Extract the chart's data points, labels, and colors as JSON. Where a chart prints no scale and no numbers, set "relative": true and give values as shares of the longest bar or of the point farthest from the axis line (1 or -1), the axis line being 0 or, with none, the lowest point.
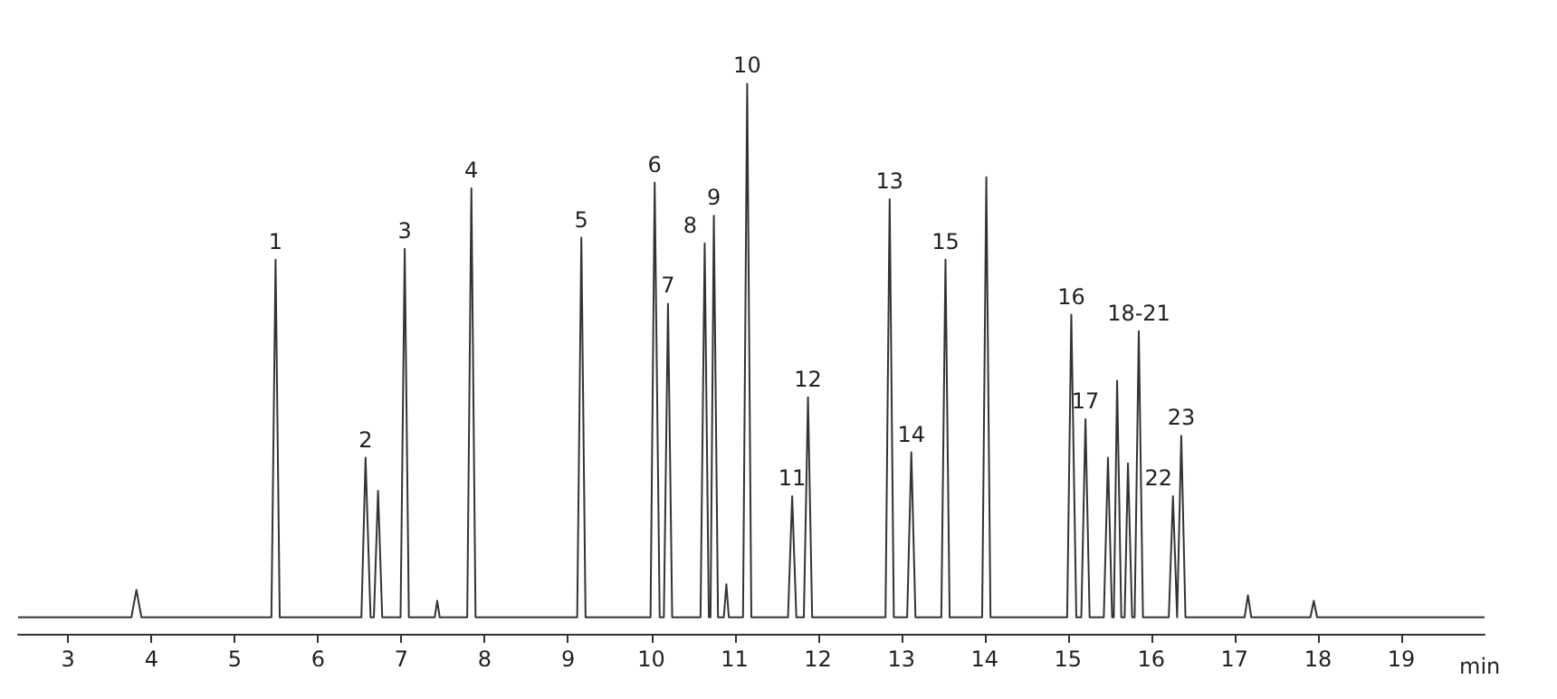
{
  "chart_data": {
    "type": "line",
    "relative": true,
    "xlabel": "min",
    "xlim": [
      2.4,
      20
    ],
    "xticks": [
      3,
      4,
      5,
      6,
      7,
      8,
      9,
      10,
      11,
      12,
      13,
      14,
      15,
      16,
      17,
      18,
      19
    ],
    "grid": false,
    "marker": "none",
    "line_style": "solid",
    "series": [
      {
        "color": "#333333",
        "x": [
          2.4,
          3.76,
          3.82,
          3.88,
          5.44,
          5.49,
          5.54,
          6.52,
          6.57,
          6.63,
          6.67,
          6.72,
          6.77,
          6.99,
          7.04,
          7.09,
          7.4,
          7.43,
          7.46,
          7.79,
          7.84,
          7.89,
          9.11,
          9.16,
          9.21,
          9.99,
          10.04,
          10.1,
          10.15,
          10.2,
          10.25,
          10.59,
          10.64,
          10.69,
          10.71,
          10.75,
          10.8,
          10.87,
          10.9,
          10.93,
          11.1,
          11.15,
          11.2,
          11.64,
          11.69,
          11.74,
          11.83,
          11.88,
          11.93,
          12.81,
          12.86,
          12.91,
          13.07,
          13.12,
          13.17,
          13.48,
          13.53,
          13.58,
          13.97,
          14.02,
          14.07,
          14.99,
          15.04,
          15.1,
          15.16,
          15.21,
          15.26,
          15.43,
          15.48,
          15.53,
          15.55,
          15.59,
          15.64,
          15.68,
          15.72,
          15.77,
          15.8,
          15.85,
          15.9,
          16.21,
          16.26,
          16.31,
          16.32,
          16.36,
          16.41,
          17.12,
          17.16,
          17.2,
          17.91,
          17.95,
          17.99,
          20
        ],
        "values": [
          0.03,
          0.03,
          0.08,
          0.03,
          0.03,
          0.68,
          0.03,
          0.03,
          0.32,
          0.03,
          0.03,
          0.26,
          0.03,
          0.03,
          0.7,
          0.03,
          0.03,
          0.06,
          0.03,
          0.03,
          0.81,
          0.03,
          0.03,
          0.72,
          0.03,
          0.03,
          0.82,
          0.03,
          0.03,
          0.6,
          0.03,
          0.03,
          0.71,
          0.03,
          0.03,
          0.76,
          0.03,
          0.03,
          0.09,
          0.03,
          0.03,
          1.0,
          0.03,
          0.03,
          0.25,
          0.03,
          0.03,
          0.43,
          0.03,
          0.03,
          0.79,
          0.03,
          0.03,
          0.33,
          0.03,
          0.03,
          0.68,
          0.03,
          0.03,
          0.83,
          0.03,
          0.03,
          0.58,
          0.03,
          0.03,
          0.39,
          0.03,
          0.03,
          0.32,
          0.03,
          0.03,
          0.46,
          0.03,
          0.03,
          0.31,
          0.03,
          0.03,
          0.55,
          0.03,
          0.03,
          0.25,
          0.03,
          0.03,
          0.36,
          0.03,
          0.03,
          0.07,
          0.03,
          0.03,
          0.06,
          0.03,
          0.03
        ]
      }
    ],
    "annotations": [
      {
        "text": "1",
        "x": 5.49,
        "y": 0.68
      },
      {
        "text": "2",
        "x": 6.57,
        "y": 0.32
      },
      {
        "text": "3",
        "x": 7.04,
        "y": 0.7
      },
      {
        "text": "4",
        "x": 7.84,
        "y": 0.81
      },
      {
        "text": "5",
        "x": 9.16,
        "y": 0.72
      },
      {
        "text": "6",
        "x": 10.04,
        "y": 0.82
      },
      {
        "text": "7",
        "x": 10.2,
        "y": 0.6
      },
      {
        "text": "8",
        "x": 10.64,
        "y": 0.71
      },
      {
        "text": "9",
        "x": 10.75,
        "y": 0.76
      },
      {
        "text": "10",
        "x": 11.15,
        "y": 1.0
      },
      {
        "text": "11",
        "x": 11.69,
        "y": 0.25
      },
      {
        "text": "12",
        "x": 11.88,
        "y": 0.43
      },
      {
        "text": "13",
        "x": 12.86,
        "y": 0.79
      },
      {
        "text": "14",
        "x": 13.12,
        "y": 0.33
      },
      {
        "text": "15",
        "x": 13.53,
        "y": 0.68
      },
      {
        "text": "16",
        "x": 15.04,
        "y": 0.58
      },
      {
        "text": "17",
        "x": 15.21,
        "y": 0.39
      },
      {
        "text": "18-21",
        "x": 15.85,
        "y": 0.55
      },
      {
        "text": "22",
        "x": 16.26,
        "y": 0.25
      },
      {
        "text": "23",
        "x": 16.36,
        "y": 0.36
      }
    ]
  }
}
